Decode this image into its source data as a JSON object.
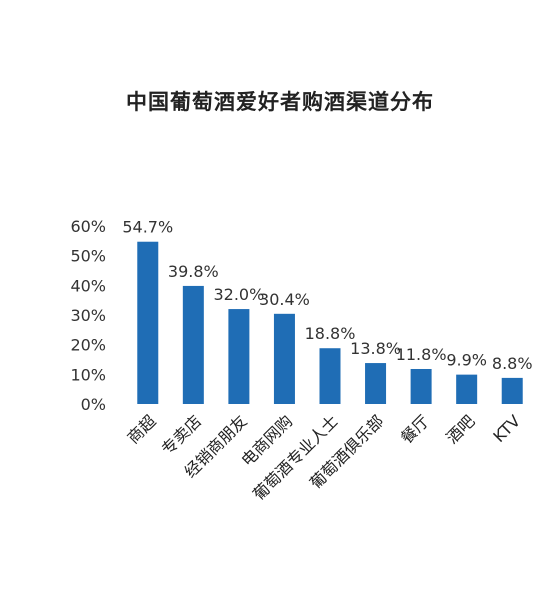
{
  "chart_data": {
    "type": "bar",
    "title": "中国葡萄酒爱好者购酒渠道分布",
    "xlabel": "",
    "ylabel": "",
    "categories": [
      "商超",
      "专卖店",
      "经销商朋友",
      "电商网购",
      "葡萄酒专业人士",
      "葡萄酒俱乐部",
      "餐厅",
      "酒吧",
      "KTV"
    ],
    "values": [
      54.7,
      39.8,
      32.0,
      30.4,
      18.8,
      13.8,
      11.8,
      9.9,
      8.8
    ],
    "value_labels": [
      "54.7%",
      "39.8%",
      "32.0%",
      "30.4%",
      "18.8%",
      "13.8%",
      "11.8%",
      "9.9%",
      "8.8%"
    ],
    "ylim": [
      0,
      60
    ],
    "yticks": [
      0,
      10,
      20,
      30,
      40,
      50,
      60
    ],
    "ytick_labels": [
      "0%",
      "10%",
      "20%",
      "30%",
      "40%",
      "50%",
      "60%"
    ],
    "grid": false,
    "legend": "none",
    "bar_color": "#1f6db5"
  }
}
